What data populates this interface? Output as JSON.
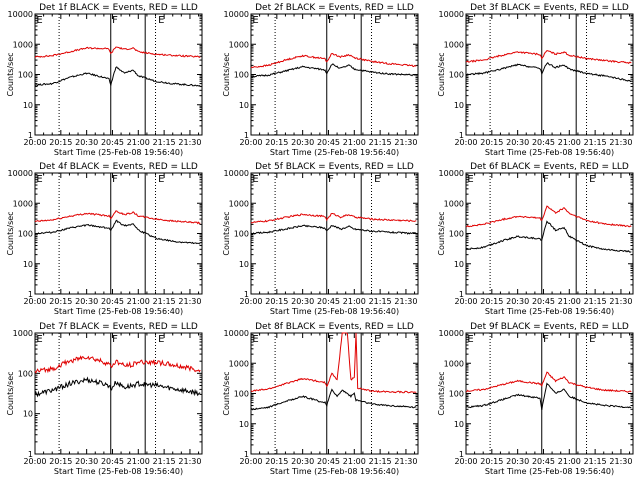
{
  "colors": {
    "events": "#000000",
    "lld": "#e00000",
    "axis": "#000000",
    "background": "#ffffff"
  },
  "common": {
    "ylabel": "Counts/sec",
    "xlabel": "Start Time (25-Feb-08 19:56:40)",
    "xticks": [
      "20:00",
      "20:15",
      "20:30",
      "20:45",
      "21:00",
      "21:15",
      "21:30"
    ],
    "yticks": [
      "1",
      "10",
      "100",
      "1000",
      "10000"
    ],
    "markers": [
      "E",
      "F",
      "E"
    ]
  },
  "chart_data": [
    {
      "type": "line",
      "title": "Det 1f BLACK = Events, RED = LLD",
      "ylim": [
        1,
        10000
      ],
      "y_scale": "log",
      "xlim": [
        "20:00",
        "21:37"
      ],
      "marker_lines": {
        "dotted": [
          "20:14",
          "21:10"
        ],
        "solid": [
          "20:44",
          "21:04"
        ]
      },
      "series": [
        {
          "name": "LLD",
          "color": "#e00000",
          "x": [
            "20:00",
            "20:10",
            "20:20",
            "20:30",
            "20:40",
            "20:43",
            "20:44",
            "20:47",
            "20:52",
            "20:57",
            "21:00",
            "21:10",
            "21:20",
            "21:36"
          ],
          "y": [
            380,
            420,
            560,
            750,
            720,
            700,
            480,
            820,
            680,
            750,
            560,
            470,
            430,
            380
          ]
        },
        {
          "name": "Events",
          "color": "#000000",
          "x": [
            "20:00",
            "20:10",
            "20:20",
            "20:30",
            "20:40",
            "20:43",
            "20:44",
            "20:47",
            "20:52",
            "20:57",
            "21:00",
            "21:10",
            "21:20",
            "21:36"
          ],
          "y": [
            45,
            50,
            80,
            110,
            80,
            70,
            45,
            180,
            110,
            140,
            90,
            60,
            50,
            42
          ]
        }
      ]
    },
    {
      "type": "line",
      "title": "Det 2f BLACK = Events, RED = LLD",
      "ylim": [
        1,
        10000
      ],
      "y_scale": "log",
      "xlim": [
        "20:00",
        "21:37"
      ],
      "marker_lines": {
        "dotted": [
          "20:14",
          "21:10"
        ],
        "solid": [
          "20:44",
          "21:04"
        ]
      },
      "series": [
        {
          "name": "LLD",
          "color": "#e00000",
          "x": [
            "20:00",
            "20:10",
            "20:20",
            "20:30",
            "20:40",
            "20:43",
            "20:44",
            "20:47",
            "20:52",
            "20:57",
            "21:00",
            "21:10",
            "21:20",
            "21:36"
          ],
          "y": [
            170,
            200,
            300,
            420,
            350,
            330,
            260,
            500,
            380,
            450,
            360,
            270,
            230,
            190
          ]
        },
        {
          "name": "Events",
          "color": "#000000",
          "x": [
            "20:00",
            "20:10",
            "20:20",
            "20:30",
            "20:40",
            "20:43",
            "20:44",
            "20:47",
            "20:52",
            "20:57",
            "21:00",
            "21:10",
            "21:20",
            "21:36"
          ],
          "y": [
            85,
            95,
            130,
            180,
            150,
            140,
            110,
            220,
            160,
            200,
            150,
            120,
            105,
            95
          ]
        }
      ]
    },
    {
      "type": "line",
      "title": "Det 3f BLACK = Events, RED = LLD",
      "ylim": [
        1,
        10000
      ],
      "y_scale": "log",
      "xlim": [
        "20:00",
        "21:37"
      ],
      "marker_lines": {
        "dotted": [
          "20:14",
          "21:10"
        ],
        "solid": [
          "20:44",
          "21:04"
        ]
      },
      "series": [
        {
          "name": "LLD",
          "color": "#e00000",
          "x": [
            "20:00",
            "20:10",
            "20:20",
            "20:30",
            "20:40",
            "20:43",
            "20:44",
            "20:47",
            "20:52",
            "20:57",
            "21:00",
            "21:10",
            "21:20",
            "21:36"
          ],
          "y": [
            260,
            300,
            420,
            560,
            480,
            460,
            340,
            620,
            470,
            560,
            430,
            340,
            290,
            240
          ]
        },
        {
          "name": "Events",
          "color": "#000000",
          "x": [
            "20:00",
            "20:10",
            "20:20",
            "20:30",
            "20:40",
            "20:43",
            "20:44",
            "20:47",
            "20:52",
            "20:57",
            "21:00",
            "21:10",
            "21:20",
            "21:36"
          ],
          "y": [
            100,
            110,
            150,
            210,
            170,
            160,
            110,
            240,
            170,
            210,
            150,
            110,
            90,
            60
          ]
        }
      ]
    },
    {
      "type": "line",
      "title": "Det 4f BLACK = Events, RED = LLD",
      "ylim": [
        1,
        10000
      ],
      "y_scale": "log",
      "xlim": [
        "20:00",
        "21:37"
      ],
      "marker_lines": {
        "dotted": [
          "20:14",
          "21:10"
        ],
        "solid": [
          "20:44",
          "21:04"
        ]
      },
      "series": [
        {
          "name": "LLD",
          "color": "#e00000",
          "x": [
            "20:00",
            "20:10",
            "20:20",
            "20:30",
            "20:40",
            "20:43",
            "20:44",
            "20:47",
            "20:52",
            "20:57",
            "21:00",
            "21:10",
            "21:20",
            "21:36"
          ],
          "y": [
            250,
            280,
            370,
            460,
            400,
            380,
            320,
            560,
            420,
            500,
            380,
            300,
            260,
            220
          ]
        },
        {
          "name": "Events",
          "color": "#000000",
          "x": [
            "20:00",
            "20:10",
            "20:20",
            "20:30",
            "20:40",
            "20:43",
            "20:44",
            "20:47",
            "20:52",
            "20:57",
            "21:00",
            "21:10",
            "21:20",
            "21:36"
          ],
          "y": [
            100,
            110,
            150,
            190,
            160,
            150,
            120,
            270,
            180,
            210,
            130,
            70,
            55,
            45
          ]
        }
      ]
    },
    {
      "type": "line",
      "title": "Det 5f BLACK = Events, RED = LLD",
      "ylim": [
        1,
        10000
      ],
      "y_scale": "log",
      "xlim": [
        "20:00",
        "21:37"
      ],
      "marker_lines": {
        "dotted": [
          "20:14",
          "21:10"
        ],
        "solid": [
          "20:44",
          "21:04"
        ]
      },
      "series": [
        {
          "name": "LLD",
          "color": "#e00000",
          "x": [
            "20:00",
            "20:10",
            "20:20",
            "20:30",
            "20:40",
            "20:43",
            "20:44",
            "20:47",
            "20:52",
            "20:57",
            "21:00",
            "21:10",
            "21:20",
            "21:36"
          ],
          "y": [
            230,
            260,
            340,
            430,
            380,
            360,
            290,
            460,
            350,
            420,
            350,
            300,
            280,
            260
          ]
        },
        {
          "name": "Events",
          "color": "#000000",
          "x": [
            "20:00",
            "20:10",
            "20:20",
            "20:30",
            "20:40",
            "20:43",
            "20:44",
            "20:47",
            "20:52",
            "20:57",
            "21:00",
            "21:10",
            "21:20",
            "21:36"
          ],
          "y": [
            100,
            110,
            140,
            180,
            160,
            150,
            120,
            190,
            140,
            170,
            140,
            120,
            110,
            100
          ]
        }
      ]
    },
    {
      "type": "line",
      "title": "Det 6f BLACK = Events, RED = LLD",
      "ylim": [
        1,
        10000
      ],
      "y_scale": "log",
      "xlim": [
        "20:00",
        "21:37"
      ],
      "marker_lines": {
        "dotted": [
          "20:14",
          "21:10"
        ],
        "solid": [
          "20:44",
          "21:04"
        ]
      },
      "series": [
        {
          "name": "LLD",
          "color": "#e00000",
          "x": [
            "20:00",
            "20:10",
            "20:20",
            "20:30",
            "20:40",
            "20:43",
            "20:44",
            "20:47",
            "20:52",
            "20:57",
            "21:00",
            "21:10",
            "21:20",
            "21:36"
          ],
          "y": [
            170,
            200,
            280,
            370,
            330,
            320,
            260,
            800,
            480,
            700,
            460,
            270,
            210,
            170
          ]
        },
        {
          "name": "Events",
          "color": "#000000",
          "x": [
            "20:00",
            "20:10",
            "20:20",
            "20:30",
            "20:40",
            "20:43",
            "20:44",
            "20:47",
            "20:52",
            "20:57",
            "21:00",
            "21:10",
            "21:20",
            "21:36"
          ],
          "y": [
            30,
            35,
            55,
            80,
            70,
            65,
            60,
            260,
            130,
            160,
            80,
            40,
            30,
            25
          ]
        }
      ]
    },
    {
      "type": "line",
      "title": "Det 7f BLACK = Events, RED = LLD",
      "ylim": [
        1,
        1000
      ],
      "y_scale": "log",
      "xlim": [
        "20:00",
        "21:37"
      ],
      "marker_lines": {
        "dotted": [
          "20:14",
          "21:10"
        ],
        "solid": [
          "20:44",
          "21:04"
        ]
      },
      "series": [
        {
          "name": "LLD",
          "color": "#e00000",
          "x": [
            "20:00",
            "20:10",
            "20:20",
            "20:30",
            "20:40",
            "20:43",
            "20:44",
            "20:47",
            "20:52",
            "20:57",
            "21:00",
            "21:10",
            "21:20",
            "21:36"
          ],
          "y": [
            110,
            130,
            200,
            260,
            190,
            170,
            140,
            200,
            150,
            170,
            190,
            190,
            160,
            120
          ]
        },
        {
          "name": "Events",
          "color": "#000000",
          "x": [
            "20:00",
            "20:10",
            "20:20",
            "20:30",
            "20:40",
            "20:43",
            "20:44",
            "20:47",
            "20:52",
            "20:57",
            "21:00",
            "21:10",
            "21:20",
            "21:36"
          ],
          "y": [
            30,
            38,
            55,
            70,
            55,
            50,
            40,
            60,
            45,
            50,
            55,
            50,
            42,
            32
          ]
        }
      ]
    },
    {
      "type": "line",
      "title": "Det 8f BLACK = Events, RED = LLD",
      "ylim": [
        1,
        10000
      ],
      "y_scale": "log",
      "xlim": [
        "20:00",
        "21:37"
      ],
      "marker_lines": {
        "dotted": [
          "20:14",
          "21:10"
        ],
        "solid": [
          "20:44",
          "21:04"
        ]
      },
      "series": [
        {
          "name": "LLD",
          "color": "#e00000",
          "x": [
            "20:00",
            "20:10",
            "20:20",
            "20:30",
            "20:40",
            "20:43",
            "20:44",
            "20:47",
            "20:50",
            "20:53",
            "20:56",
            "20:58",
            "21:00",
            "21:01",
            "21:02",
            "21:10",
            "21:20",
            "21:36"
          ],
          "y": [
            120,
            140,
            210,
            310,
            250,
            230,
            170,
            460,
            280,
            10000,
            10000,
            280,
            350,
            10000,
            150,
            120,
            115,
            110
          ]
        },
        {
          "name": "Events",
          "color": "#000000",
          "x": [
            "20:00",
            "20:10",
            "20:20",
            "20:30",
            "20:40",
            "20:43",
            "20:44",
            "20:47",
            "20:50",
            "20:53",
            "20:56",
            "20:58",
            "21:00",
            "21:01",
            "21:02",
            "21:10",
            "21:20",
            "21:36"
          ],
          "y": [
            30,
            35,
            55,
            80,
            55,
            50,
            40,
            140,
            80,
            130,
            100,
            80,
            100,
            60,
            60,
            45,
            40,
            35
          ]
        }
      ]
    },
    {
      "type": "line",
      "title": "Det 9f BLACK = Events, RED = LLD",
      "ylim": [
        1,
        10000
      ],
      "y_scale": "log",
      "xlim": [
        "20:00",
        "21:37"
      ],
      "marker_lines": {
        "dotted": [
          "20:14",
          "21:10"
        ],
        "solid": [
          "20:44",
          "21:04"
        ]
      },
      "series": [
        {
          "name": "LLD",
          "color": "#e00000",
          "x": [
            "20:00",
            "20:10",
            "20:20",
            "20:30",
            "20:40",
            "20:43",
            "20:44",
            "20:47",
            "20:52",
            "20:57",
            "21:00",
            "21:10",
            "21:20",
            "21:36"
          ],
          "y": [
            120,
            135,
            190,
            260,
            220,
            210,
            180,
            500,
            260,
            350,
            230,
            160,
            130,
            115
          ]
        },
        {
          "name": "Events",
          "color": "#000000",
          "x": [
            "20:00",
            "20:10",
            "20:20",
            "20:30",
            "20:40",
            "20:43",
            "20:44",
            "20:47",
            "20:52",
            "20:57",
            "21:00",
            "21:10",
            "21:20",
            "21:36"
          ],
          "y": [
            35,
            40,
            60,
            90,
            75,
            70,
            30,
            220,
            100,
            140,
            80,
            50,
            40,
            35
          ]
        }
      ]
    }
  ]
}
